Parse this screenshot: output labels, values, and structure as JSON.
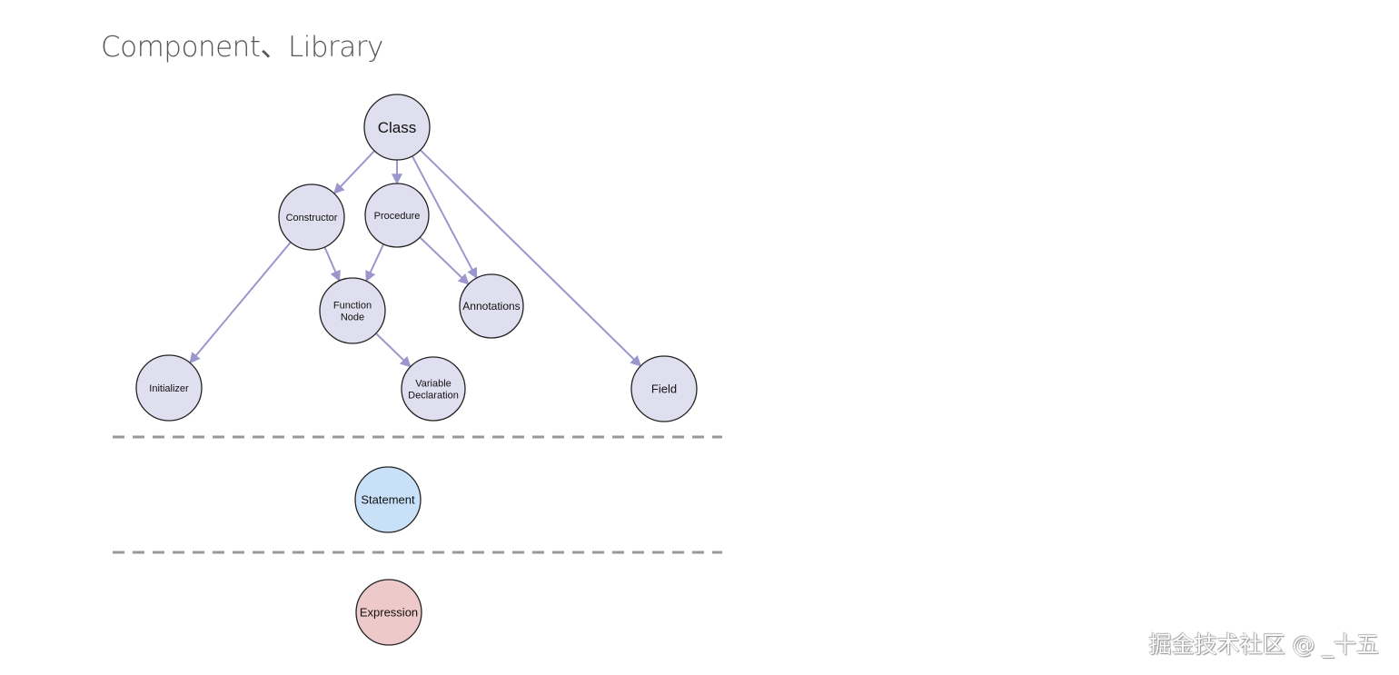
{
  "title": "Component、Library",
  "watermark": "掘金技术社区 @ _十五",
  "colors": {
    "node_default": "#e0dff0",
    "node_statement": "#c8e0f8",
    "node_expression": "#eec9c9",
    "edge": "#9b97cc",
    "separator": "#999999"
  },
  "nodes": [
    {
      "id": "class",
      "label": [
        "Class"
      ],
      "fill": "default"
    },
    {
      "id": "constructor",
      "label": [
        "Constructor"
      ],
      "fill": "default"
    },
    {
      "id": "procedure",
      "label": [
        "Procedure"
      ],
      "fill": "default"
    },
    {
      "id": "function-node",
      "label": [
        "Function",
        "Node"
      ],
      "fill": "default"
    },
    {
      "id": "annotations",
      "label": [
        "Annotations"
      ],
      "fill": "default"
    },
    {
      "id": "initializer",
      "label": [
        "Initializer"
      ],
      "fill": "default"
    },
    {
      "id": "variable-declaration",
      "label": [
        "Variable",
        "Declaration"
      ],
      "fill": "default"
    },
    {
      "id": "field",
      "label": [
        "Field"
      ],
      "fill": "default"
    },
    {
      "id": "statement",
      "label": [
        "Statement"
      ],
      "fill": "statement"
    },
    {
      "id": "expression",
      "label": [
        "Expression"
      ],
      "fill": "expression"
    }
  ],
  "edges": [
    {
      "from": "class",
      "to": "constructor"
    },
    {
      "from": "class",
      "to": "procedure"
    },
    {
      "from": "class",
      "to": "annotations"
    },
    {
      "from": "class",
      "to": "field"
    },
    {
      "from": "constructor",
      "to": "initializer"
    },
    {
      "from": "constructor",
      "to": "function-node"
    },
    {
      "from": "procedure",
      "to": "function-node"
    },
    {
      "from": "procedure",
      "to": "annotations"
    },
    {
      "from": "function-node",
      "to": "variable-declaration"
    }
  ]
}
